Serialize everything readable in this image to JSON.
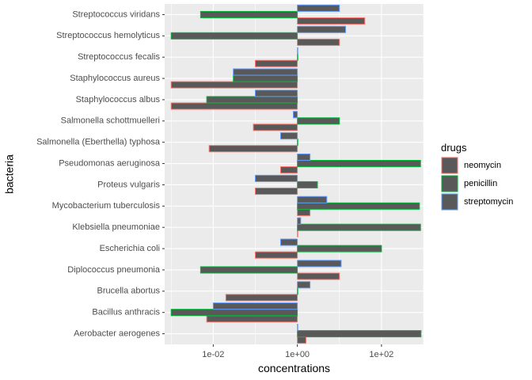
{
  "chart_data": {
    "type": "bar",
    "orientation": "horizontal",
    "x_scale": "log10",
    "xlabel": "concentrations",
    "ylabel": "bacteria",
    "x_ticks": [
      0.01,
      1,
      100
    ],
    "x_tick_labels": [
      "1e-02",
      "1e+00",
      "1e+02"
    ],
    "xlim": [
      0.0007,
      1000
    ],
    "grid": true,
    "legend_position": "right",
    "legend_title": "drugs",
    "panel_background": "#ebebeb",
    "bar_fill": "#595959",
    "categories": [
      "Aerobacter aerogenes",
      "Bacillus anthracis",
      "Brucella abortus",
      "Diplococcus pneumonia",
      "Escherichia coli",
      "Klebsiella pneumoniae",
      "Mycobacterium tuberculosis",
      "Proteus vulgaris",
      "Pseudomonas aeruginosa",
      "Salmonella (Eberthella) typhosa",
      "Salmonella schottmuelleri",
      "Staphylococcus albus",
      "Staphylococcus aureus",
      "Streptococcus fecalis",
      "Streptococcus hemolyticus",
      "Streptococcus viridans"
    ],
    "series": [
      {
        "name": "neomycin",
        "color": "#F8766D",
        "values": [
          1.6,
          0.007,
          0.02,
          10,
          0.1,
          1,
          2,
          0.1,
          0.4,
          0.008,
          0.09,
          0.001,
          0.001,
          0.1,
          10,
          40
        ]
      },
      {
        "name": "penicillin",
        "color": "#00BA38",
        "values": [
          870,
          0.001,
          1,
          0.005,
          100,
          850,
          800,
          3,
          850,
          1,
          10,
          0.007,
          0.03,
          1,
          0.001,
          0.005
        ]
      },
      {
        "name": "streptomycin",
        "color": "#619CFF",
        "values": [
          1,
          0.01,
          2,
          11,
          0.4,
          1.2,
          5,
          0.1,
          2,
          0.4,
          0.8,
          0.1,
          0.03,
          1,
          14,
          10
        ]
      }
    ]
  }
}
